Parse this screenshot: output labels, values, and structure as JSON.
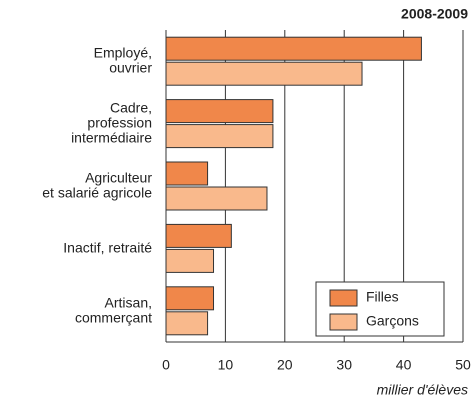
{
  "chart_data": {
    "type": "hbar",
    "title": "2008-2009",
    "x_label": "millier d'élèves",
    "categories": [
      [
        "Employé,",
        "ouvrier"
      ],
      [
        "Cadre,",
        "profession",
        "intermédiaire"
      ],
      [
        "Agriculteur",
        "et salarié agricole"
      ],
      [
        "Inactif, retraité"
      ],
      [
        "Artisan,",
        "commerçant"
      ]
    ],
    "series": [
      {
        "name": "Filles",
        "color": "#f0874a",
        "values": [
          43,
          18,
          7,
          11,
          8
        ]
      },
      {
        "name": "Garçons",
        "color": "#f9b98c",
        "values": [
          33,
          18,
          17,
          8,
          7
        ]
      }
    ],
    "xlim": [
      0,
      50
    ],
    "xticks": [
      0,
      10,
      20,
      30,
      40,
      50
    ],
    "grid": true,
    "legend": "lower right"
  }
}
